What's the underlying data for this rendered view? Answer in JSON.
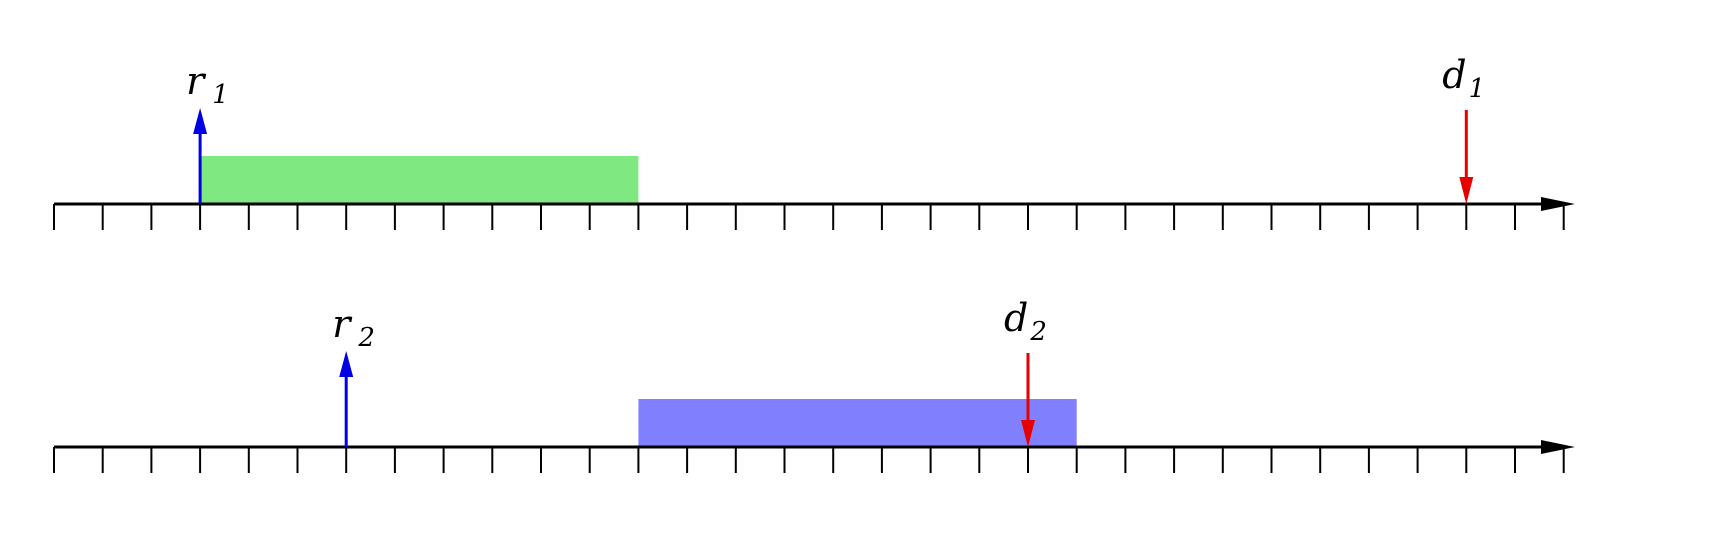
{
  "diagram": {
    "tick_count": 32,
    "timelines": [
      {
        "job_bar": {
          "start": 3,
          "end": 12,
          "color": "#80e880"
        },
        "release": {
          "at": 3,
          "label_main": "r",
          "label_sub": "1",
          "color": "#0000e6"
        },
        "deadline": {
          "at": 29,
          "label_main": "d",
          "label_sub": "1",
          "color": "#e60000"
        }
      },
      {
        "job_bar": {
          "start": 12,
          "end": 21,
          "color": "#8080ff"
        },
        "release": {
          "at": 6,
          "label_main": "r",
          "label_sub": "2",
          "color": "#0000e6"
        },
        "deadline": {
          "at": 20,
          "label_main": "d",
          "label_sub": "2",
          "color": "#e60000"
        }
      }
    ]
  }
}
